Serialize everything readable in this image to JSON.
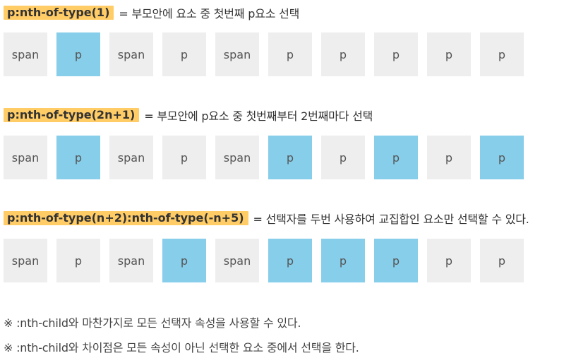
{
  "colors": {
    "highlight": "#ffcc66",
    "selected": "#87ceeb",
    "default": "#eeeeee"
  },
  "sections": [
    {
      "code": "p:nth-of-type(1)",
      "description": "= 부모안에 요소 중 첫번째 p요소 선택",
      "boxes": [
        {
          "label": "span",
          "selected": false
        },
        {
          "label": "p",
          "selected": true
        },
        {
          "label": "span",
          "selected": false
        },
        {
          "label": "p",
          "selected": false
        },
        {
          "label": "span",
          "selected": false
        },
        {
          "label": "p",
          "selected": false
        },
        {
          "label": "p",
          "selected": false
        },
        {
          "label": "p",
          "selected": false
        },
        {
          "label": "p",
          "selected": false
        },
        {
          "label": "p",
          "selected": false
        }
      ]
    },
    {
      "code": "p:nth-of-type(2n+1)",
      "description": "= 부모안에 p요소 중 첫번째부터 2번째마다 선택",
      "boxes": [
        {
          "label": "span",
          "selected": false
        },
        {
          "label": "p",
          "selected": true
        },
        {
          "label": "span",
          "selected": false
        },
        {
          "label": "p",
          "selected": false
        },
        {
          "label": "span",
          "selected": false
        },
        {
          "label": "p",
          "selected": true
        },
        {
          "label": "p",
          "selected": false
        },
        {
          "label": "p",
          "selected": true
        },
        {
          "label": "p",
          "selected": false
        },
        {
          "label": "p",
          "selected": true
        }
      ]
    },
    {
      "code": "p:nth-of-type(n+2):nth-of-type(-n+5)",
      "description": "= 선택자를 두번 사용하여 교집합인 요소만 선택할 수 있다.",
      "boxes": [
        {
          "label": "span",
          "selected": false
        },
        {
          "label": "p",
          "selected": false
        },
        {
          "label": "span",
          "selected": false
        },
        {
          "label": "p",
          "selected": true
        },
        {
          "label": "span",
          "selected": false
        },
        {
          "label": "p",
          "selected": true
        },
        {
          "label": "p",
          "selected": true
        },
        {
          "label": "p",
          "selected": true
        },
        {
          "label": "p",
          "selected": false
        },
        {
          "label": "p",
          "selected": false
        }
      ]
    }
  ],
  "notes": [
    "※ :nth-child와 마찬가지로 모든 선택자 속성을 사용할 수 있다.",
    "※ :nth-child와 차이점은 모든 속성이 아닌 선택한 요소 중에서 선택을 한다."
  ]
}
